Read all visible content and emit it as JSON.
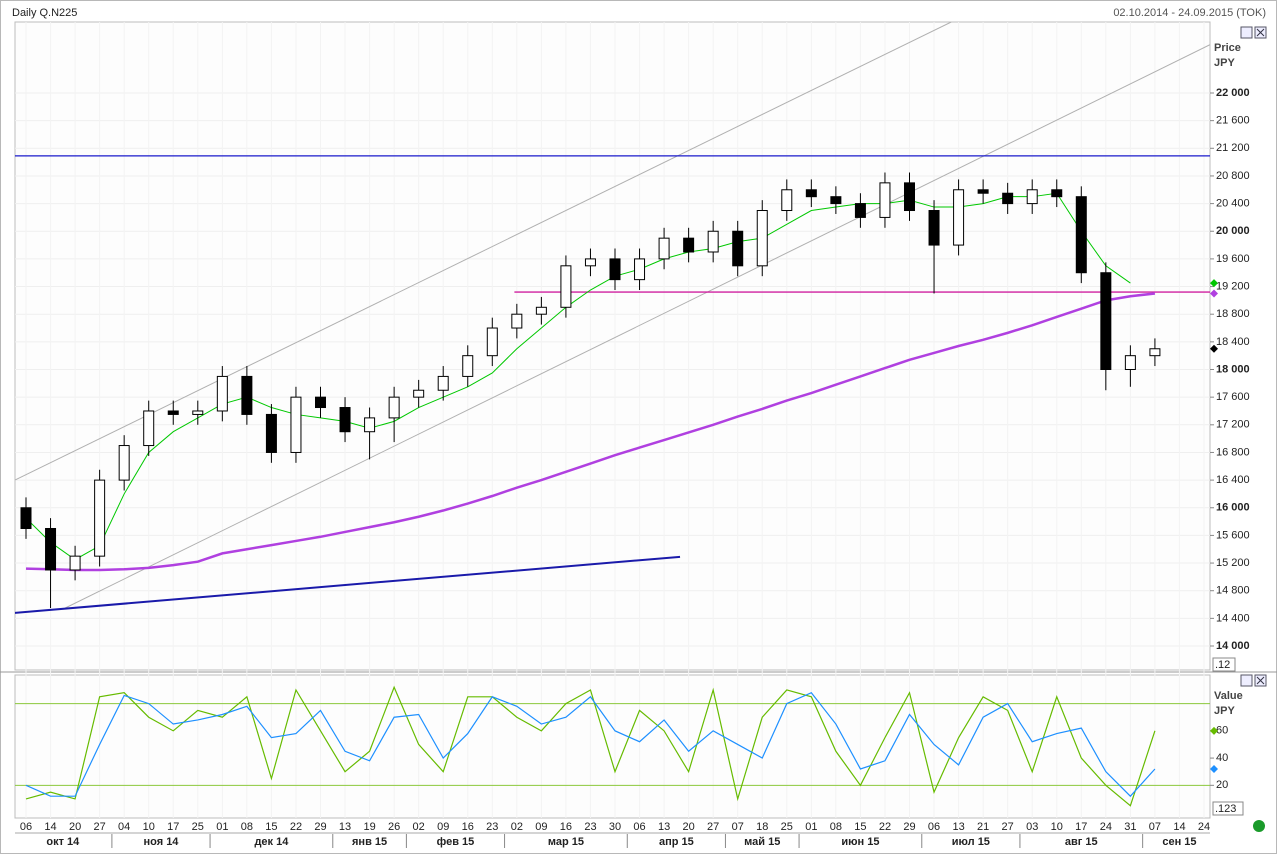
{
  "chart_data": {
    "type": "candlestick",
    "title": "Daily Q.N225",
    "date_range": "02.10.2014 - 24.09.2015 (TOK)",
    "y_label": "Price",
    "y_unit": "JPY",
    "scale_note": ".12",
    "categories": [
      "06",
      "14",
      "20",
      "27",
      "04",
      "10",
      "17",
      "25",
      "01",
      "08",
      "15",
      "22",
      "29",
      "13",
      "19",
      "26",
      "02",
      "09",
      "16",
      "23",
      "02",
      "09",
      "16",
      "23",
      "30",
      "06",
      "13",
      "20",
      "27",
      "07",
      "18",
      "25",
      "01",
      "08",
      "15",
      "22",
      "29",
      "06",
      "13",
      "21",
      "27",
      "03",
      "10",
      "17",
      "24",
      "31",
      "07",
      "14",
      "24"
    ],
    "month_labels": [
      "окт 14",
      "ноя 14",
      "дек 14",
      "янв 15",
      "фев 15",
      "мар 15",
      "апр 15",
      "май 15",
      "июн 15",
      "июл 15",
      "авг 15",
      "сен 15"
    ],
    "open": [
      16000,
      15700,
      15100,
      15300,
      16400,
      16900,
      17400,
      17350,
      17400,
      17900,
      17350,
      16800,
      17600,
      17450,
      17100,
      17300,
      17600,
      17700,
      17900,
      18200,
      18600,
      18800,
      18900,
      19500,
      19600,
      19300,
      19600,
      19900,
      19700,
      20000,
      19500,
      20300,
      20600,
      20500,
      20400,
      20200,
      20700,
      20300,
      19800,
      20600,
      20550,
      20400,
      20600,
      20500,
      19400,
      18000,
      18200,
      null,
      null
    ],
    "high": [
      16150,
      15850,
      15450,
      16550,
      17050,
      17550,
      17550,
      17550,
      18050,
      18050,
      17500,
      17750,
      17750,
      17600,
      17450,
      17750,
      17850,
      18050,
      18350,
      18750,
      18950,
      19050,
      19650,
      19750,
      19750,
      19750,
      20050,
      20050,
      20150,
      20150,
      20450,
      20750,
      20750,
      20650,
      20550,
      20850,
      20850,
      20450,
      20750,
      20750,
      20700,
      20750,
      20750,
      20650,
      19550,
      18350,
      18450,
      null,
      null
    ],
    "low": [
      15550,
      14550,
      14950,
      15150,
      16250,
      16750,
      17200,
      17200,
      17250,
      17200,
      16650,
      16650,
      17300,
      16950,
      16700,
      16950,
      17450,
      17550,
      17750,
      18050,
      18450,
      18650,
      18750,
      19350,
      19150,
      19150,
      19450,
      19550,
      19550,
      19350,
      19350,
      20150,
      20350,
      20250,
      20050,
      20050,
      20150,
      19100,
      19650,
      20400,
      20250,
      20250,
      20350,
      19250,
      17700,
      17750,
      18050,
      null,
      null
    ],
    "close": [
      15700,
      15100,
      15300,
      16400,
      16900,
      17400,
      17350,
      17400,
      17900,
      17350,
      16800,
      17600,
      17450,
      17100,
      17300,
      17600,
      17700,
      17900,
      18200,
      18600,
      18800,
      18900,
      19500,
      19600,
      19300,
      19600,
      19900,
      19700,
      20000,
      19500,
      20300,
      20600,
      20500,
      20400,
      20200,
      20700,
      20300,
      19800,
      20600,
      20550,
      20400,
      20600,
      20500,
      19400,
      18000,
      18200,
      18300,
      null,
      null
    ],
    "series": [
      {
        "color": "#00c800",
        "values": [
          15850,
          15500,
          15250,
          15450,
          16200,
          16800,
          17100,
          17300,
          17500,
          17600,
          17450,
          17350,
          17300,
          17250,
          17150,
          17250,
          17450,
          17600,
          17750,
          17950,
          18300,
          18600,
          18900,
          19150,
          19350,
          19450,
          19600,
          19700,
          19750,
          19850,
          19900,
          20100,
          20300,
          20350,
          20400,
          20400,
          20450,
          20350,
          20350,
          20400,
          20500,
          20500,
          20550,
          20000,
          19500,
          19250,
          null,
          null,
          null
        ]
      },
      {
        "color": "#b040e0",
        "values": [
          15120,
          15110,
          15100,
          15100,
          15110,
          15130,
          15170,
          15220,
          15340,
          15400,
          15460,
          15520,
          15580,
          15650,
          15720,
          15790,
          15870,
          15960,
          16060,
          16170,
          16290,
          16400,
          16520,
          16640,
          16760,
          16870,
          16980,
          17090,
          17200,
          17320,
          17430,
          17550,
          17660,
          17780,
          17900,
          18020,
          18140,
          18240,
          18340,
          18430,
          18530,
          18640,
          18760,
          18880,
          19000,
          19060,
          19100,
          null,
          null
        ]
      }
    ],
    "hlines": [
      {
        "value": 21090,
        "color": "#1a1acc",
        "x_start": -0.45
      },
      {
        "value": 19120,
        "color": "#d020a0",
        "x_start": 19.9
      }
    ],
    "trendlines": [
      {
        "x": [
          -0.45,
          37.7
        ],
        "y": [
          16400,
          23027
        ],
        "color": "#b0b0b0"
      },
      {
        "x": [
          1.6,
          48.25
        ],
        "y": [
          14550,
          22700
        ],
        "color": "#b0b0b0"
      },
      {
        "x": [
          -0.45,
          26.65
        ],
        "y": [
          14480,
          15290
        ],
        "color": "#1a1aaa"
      }
    ],
    "ylim": [
      13653,
      23027
    ],
    "yticks": [
      {
        "value": 14000,
        "label": "14 000"
      },
      {
        "value": 14400,
        "label": "14 400"
      },
      {
        "value": 14800,
        "label": "14 800"
      },
      {
        "value": 15200,
        "label": "15 200"
      },
      {
        "value": 15600,
        "label": "15 600"
      },
      {
        "value": 16000,
        "label": "16 000"
      },
      {
        "value": 16400,
        "label": "16 400"
      },
      {
        "value": 16800,
        "label": "16 800"
      },
      {
        "value": 17200,
        "label": "17 200"
      },
      {
        "value": 17600,
        "label": "17 600"
      },
      {
        "value": 18000,
        "label": "18 000"
      },
      {
        "value": 18400,
        "label": "18 400"
      },
      {
        "value": 18800,
        "label": "18 800"
      },
      {
        "value": 19200,
        "label": "19 200"
      },
      {
        "value": 19600,
        "label": "19 600"
      },
      {
        "value": 20000,
        "label": "20 000"
      },
      {
        "value": 20400,
        "label": "20 400"
      },
      {
        "value": 20800,
        "label": "20 800"
      },
      {
        "value": 21200,
        "label": "21 200"
      },
      {
        "value": 21600,
        "label": "21 600"
      },
      {
        "value": 22000,
        "label": "22 000"
      }
    ],
    "grid": true,
    "oscillator": {
      "type": "line",
      "y_label": "Value",
      "y_unit": "JPY",
      "scale_note": ".123",
      "series": [
        {
          "color": "#66bb00",
          "values": [
            10,
            15,
            10,
            85,
            88,
            70,
            60,
            75,
            70,
            85,
            25,
            90,
            60,
            30,
            45,
            92,
            50,
            30,
            85,
            85,
            70,
            60,
            80,
            90,
            30,
            75,
            60,
            30,
            90,
            10,
            70,
            90,
            85,
            45,
            20,
            55,
            88,
            15,
            55,
            85,
            75,
            30,
            85,
            40,
            20,
            5,
            60,
            null,
            null
          ]
        },
        {
          "color": "#1e90ff",
          "values": [
            20,
            12,
            12,
            50,
            86,
            80,
            65,
            68,
            72,
            78,
            55,
            58,
            75,
            45,
            38,
            70,
            72,
            40,
            58,
            85,
            78,
            65,
            70,
            85,
            60,
            52,
            68,
            45,
            60,
            50,
            40,
            80,
            88,
            65,
            32,
            38,
            72,
            50,
            35,
            70,
            80,
            52,
            58,
            62,
            30,
            12,
            32,
            null,
            null
          ]
        }
      ],
      "levels": [
        20,
        80
      ],
      "ylim": [
        -4,
        101
      ],
      "yticks": [
        20,
        40,
        60
      ]
    }
  }
}
